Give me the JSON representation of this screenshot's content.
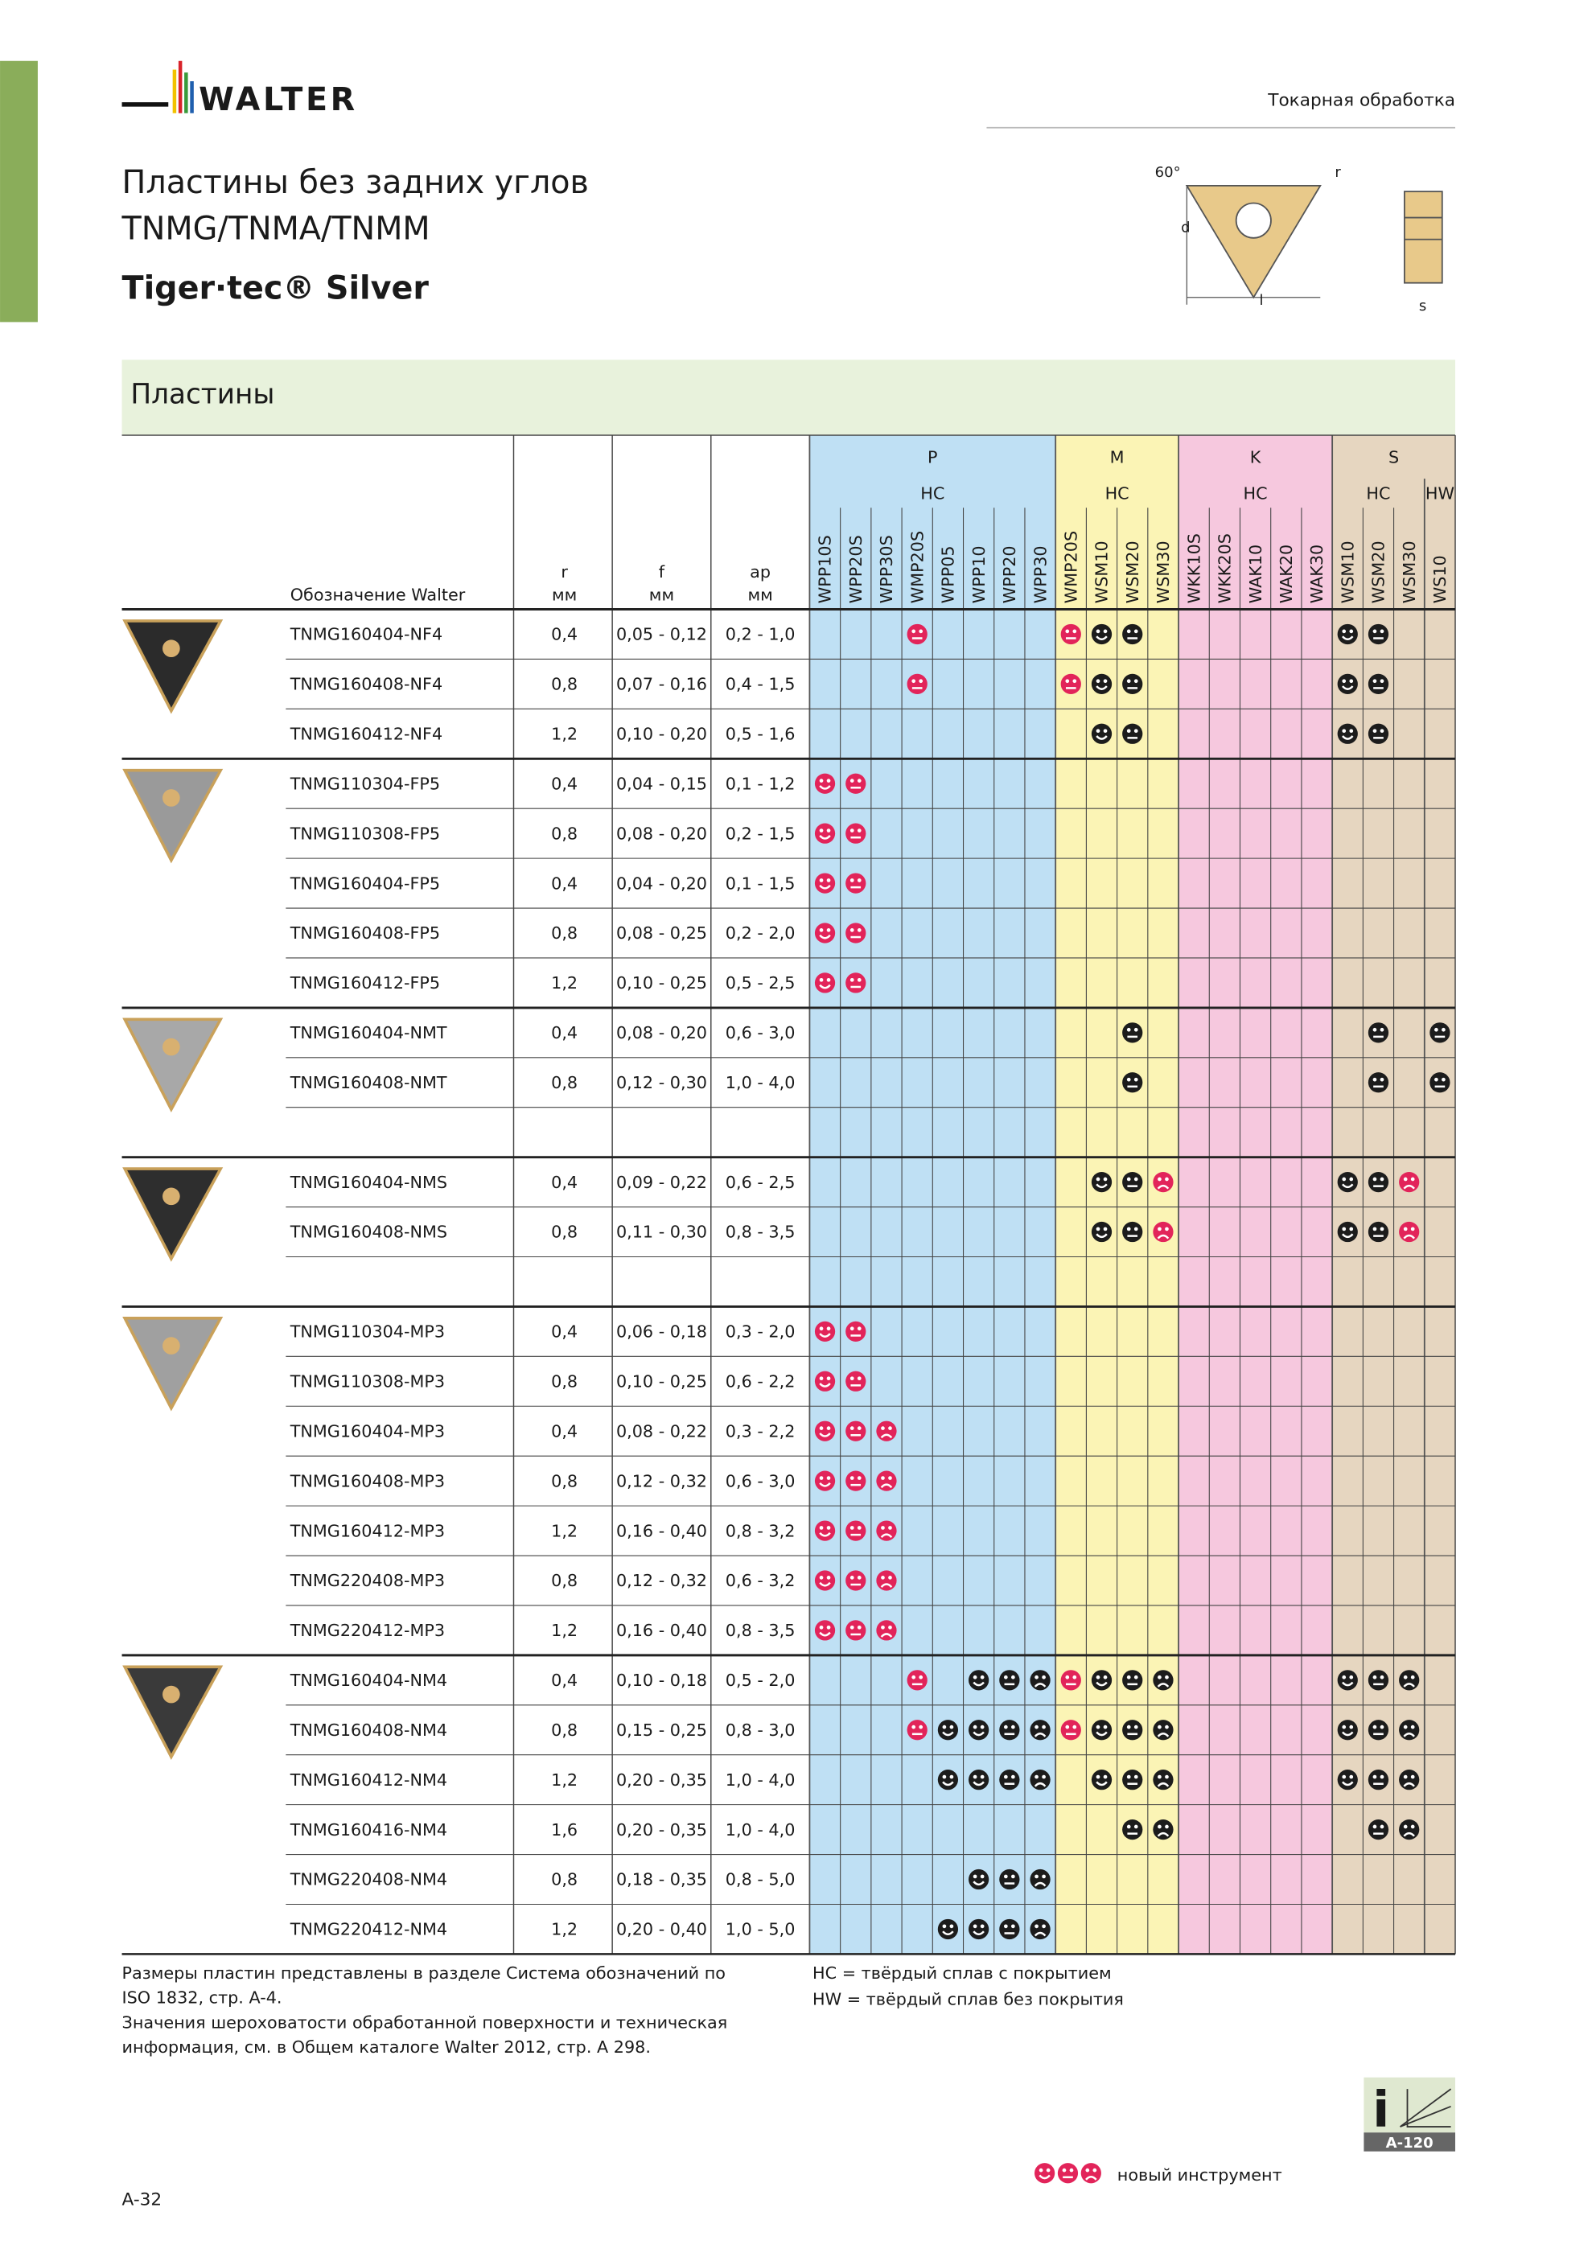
{
  "header": {
    "brand": "WALTER",
    "section": "Токарная обработка"
  },
  "title": {
    "line1": "Пластины без задних углов",
    "line2": "TNMG/TNMA/TNMM",
    "subtitle": "Tiger·tec® Silver"
  },
  "diagram": {
    "angle": "60°",
    "radius": "r",
    "diameter": "d",
    "length": "l",
    "thickness": "s"
  },
  "band": "Пластины",
  "table": {
    "columns": {
      "designation": "Обозначение Walter",
      "r": {
        "label": "r",
        "unit": "мм"
      },
      "f": {
        "label": "f",
        "unit": "мм"
      },
      "ap": {
        "label": "ap",
        "unit": "мм"
      }
    },
    "groups": [
      {
        "name": "P",
        "subgroups": [
          {
            "name": "HC",
            "grades": [
              "WPP10S",
              "WPP20S",
              "WPP30S",
              "WMP20S",
              "WPP05",
              "WPP10",
              "WPP20",
              "WPP30"
            ]
          }
        ]
      },
      {
        "name": "M",
        "subgroups": [
          {
            "name": "HC",
            "grades": [
              "WMP20S",
              "WSM10",
              "WSM20",
              "WSM30"
            ]
          }
        ]
      },
      {
        "name": "K",
        "subgroups": [
          {
            "name": "HC",
            "grades": [
              "WKK10S",
              "WKK20S",
              "WAK10",
              "WAK20",
              "WAK30"
            ]
          }
        ]
      },
      {
        "name": "S",
        "subgroups": [
          {
            "name": "HC",
            "grades": [
              "WSM10",
              "WSM20",
              "WSM30"
            ]
          },
          {
            "name": "HW",
            "grades": [
              "WS10"
            ]
          }
        ]
      }
    ],
    "inserts": [
      {
        "rows": [
          {
            "designation": "TNMG160404-NF4",
            "r": "0,4",
            "f": "0,05 - 0,12",
            "ap": "0,2 - 1,0",
            "ratings": [
              null,
              null,
              null,
              "medium-new",
              null,
              null,
              null,
              null,
              "medium-new",
              "good",
              "medium",
              null,
              null,
              null,
              null,
              null,
              null,
              "good",
              "medium",
              null,
              null
            ]
          },
          {
            "designation": "TNMG160408-NF4",
            "r": "0,8",
            "f": "0,07 - 0,16",
            "ap": "0,4 - 1,5",
            "ratings": [
              null,
              null,
              null,
              "medium-new",
              null,
              null,
              null,
              null,
              "medium-new",
              "good",
              "medium",
              null,
              null,
              null,
              null,
              null,
              null,
              "good",
              "medium",
              null,
              null
            ]
          },
          {
            "designation": "TNMG160412-NF4",
            "r": "1,2",
            "f": "0,10 - 0,20",
            "ap": "0,5 - 1,6",
            "ratings": [
              null,
              null,
              null,
              null,
              null,
              null,
              null,
              null,
              null,
              "good",
              "medium",
              null,
              null,
              null,
              null,
              null,
              null,
              "good",
              "medium",
              null,
              null
            ]
          }
        ]
      },
      {
        "rows": [
          {
            "designation": "TNMG110304-FP5",
            "r": "0,4",
            "f": "0,04 - 0,15",
            "ap": "0,1 - 1,2",
            "ratings": [
              "good-new",
              "medium-new",
              null,
              null,
              null,
              null,
              null,
              null,
              null,
              null,
              null,
              null,
              null,
              null,
              null,
              null,
              null,
              null,
              null,
              null,
              null
            ]
          },
          {
            "designation": "TNMG110308-FP5",
            "r": "0,8",
            "f": "0,08 - 0,20",
            "ap": "0,2 - 1,5",
            "ratings": [
              "good-new",
              "medium-new",
              null,
              null,
              null,
              null,
              null,
              null,
              null,
              null,
              null,
              null,
              null,
              null,
              null,
              null,
              null,
              null,
              null,
              null,
              null
            ]
          },
          {
            "designation": "TNMG160404-FP5",
            "r": "0,4",
            "f": "0,04 - 0,20",
            "ap": "0,1 - 1,5",
            "ratings": [
              "good-new",
              "medium-new",
              null,
              null,
              null,
              null,
              null,
              null,
              null,
              null,
              null,
              null,
              null,
              null,
              null,
              null,
              null,
              null,
              null,
              null,
              null
            ]
          },
          {
            "designation": "TNMG160408-FP5",
            "r": "0,8",
            "f": "0,08 - 0,25",
            "ap": "0,2 - 2,0",
            "ratings": [
              "good-new",
              "medium-new",
              null,
              null,
              null,
              null,
              null,
              null,
              null,
              null,
              null,
              null,
              null,
              null,
              null,
              null,
              null,
              null,
              null,
              null,
              null
            ]
          },
          {
            "designation": "TNMG160412-FP5",
            "r": "1,2",
            "f": "0,10 - 0,25",
            "ap": "0,5 - 2,5",
            "ratings": [
              "good-new",
              "medium-new",
              null,
              null,
              null,
              null,
              null,
              null,
              null,
              null,
              null,
              null,
              null,
              null,
              null,
              null,
              null,
              null,
              null,
              null,
              null
            ]
          }
        ]
      },
      {
        "rows": [
          {
            "designation": "TNMG160404-NMT",
            "r": "0,4",
            "f": "0,08 - 0,20",
            "ap": "0,6 - 3,0",
            "ratings": [
              null,
              null,
              null,
              null,
              null,
              null,
              null,
              null,
              null,
              null,
              "medium",
              null,
              null,
              null,
              null,
              null,
              null,
              null,
              "medium",
              null,
              "medium"
            ]
          },
          {
            "designation": "TNMG160408-NMT",
            "r": "0,8",
            "f": "0,12 - 0,30",
            "ap": "1,0 - 4,0",
            "ratings": [
              null,
              null,
              null,
              null,
              null,
              null,
              null,
              null,
              null,
              null,
              "medium",
              null,
              null,
              null,
              null,
              null,
              null,
              null,
              "medium",
              null,
              "medium"
            ]
          },
          null
        ]
      },
      {
        "rows": [
          {
            "designation": "TNMG160404-NMS",
            "r": "0,4",
            "f": "0,09 - 0,22",
            "ap": "0,6 - 2,5",
            "ratings": [
              null,
              null,
              null,
              null,
              null,
              null,
              null,
              null,
              null,
              "good",
              "medium",
              "poor-new",
              null,
              null,
              null,
              null,
              null,
              "good",
              "medium",
              "poor-new",
              null
            ]
          },
          {
            "designation": "TNMG160408-NMS",
            "r": "0,8",
            "f": "0,11 - 0,30",
            "ap": "0,8 - 3,5",
            "ratings": [
              null,
              null,
              null,
              null,
              null,
              null,
              null,
              null,
              null,
              "good",
              "medium",
              "poor-new",
              null,
              null,
              null,
              null,
              null,
              "good",
              "medium",
              "poor-new",
              null
            ]
          },
          null
        ]
      },
      {
        "rows": [
          {
            "designation": "TNMG110304-MP3",
            "r": "0,4",
            "f": "0,06 - 0,18",
            "ap": "0,3 - 2,0",
            "ratings": [
              "good-new",
              "medium-new",
              null,
              null,
              null,
              null,
              null,
              null,
              null,
              null,
              null,
              null,
              null,
              null,
              null,
              null,
              null,
              null,
              null,
              null,
              null
            ]
          },
          {
            "designation": "TNMG110308-MP3",
            "r": "0,8",
            "f": "0,10 - 0,25",
            "ap": "0,6 - 2,2",
            "ratings": [
              "good-new",
              "medium-new",
              null,
              null,
              null,
              null,
              null,
              null,
              null,
              null,
              null,
              null,
              null,
              null,
              null,
              null,
              null,
              null,
              null,
              null,
              null
            ]
          },
          {
            "designation": "TNMG160404-MP3",
            "r": "0,4",
            "f": "0,08 - 0,22",
            "ap": "0,3 - 2,2",
            "ratings": [
              "good-new",
              "medium-new",
              "poor-new",
              null,
              null,
              null,
              null,
              null,
              null,
              null,
              null,
              null,
              null,
              null,
              null,
              null,
              null,
              null,
              null,
              null,
              null
            ]
          },
          {
            "designation": "TNMG160408-MP3",
            "r": "0,8",
            "f": "0,12 - 0,32",
            "ap": "0,6 - 3,0",
            "ratings": [
              "good-new",
              "medium-new",
              "poor-new",
              null,
              null,
              null,
              null,
              null,
              null,
              null,
              null,
              null,
              null,
              null,
              null,
              null,
              null,
              null,
              null,
              null,
              null
            ]
          },
          {
            "designation": "TNMG160412-MP3",
            "r": "1,2",
            "f": "0,16 - 0,40",
            "ap": "0,8 - 3,2",
            "ratings": [
              "good-new",
              "medium-new",
              "poor-new",
              null,
              null,
              null,
              null,
              null,
              null,
              null,
              null,
              null,
              null,
              null,
              null,
              null,
              null,
              null,
              null,
              null,
              null
            ]
          },
          {
            "designation": "TNMG220408-MP3",
            "r": "0,8",
            "f": "0,12 - 0,32",
            "ap": "0,6 - 3,2",
            "ratings": [
              "good-new",
              "medium-new",
              "poor-new",
              null,
              null,
              null,
              null,
              null,
              null,
              null,
              null,
              null,
              null,
              null,
              null,
              null,
              null,
              null,
              null,
              null,
              null
            ]
          },
          {
            "designation": "TNMG220412-MP3",
            "r": "1,2",
            "f": "0,16 - 0,40",
            "ap": "0,8 - 3,5",
            "ratings": [
              "good-new",
              "medium-new",
              "poor-new",
              null,
              null,
              null,
              null,
              null,
              null,
              null,
              null,
              null,
              null,
              null,
              null,
              null,
              null,
              null,
              null,
              null,
              null
            ]
          }
        ]
      },
      {
        "rows": [
          {
            "designation": "TNMG160404-NM4",
            "r": "0,4",
            "f": "0,10 - 0,18",
            "ap": "0,5 - 2,0",
            "ratings": [
              null,
              null,
              null,
              "medium-new",
              null,
              "good",
              "medium",
              "poor",
              "medium-new",
              "good",
              "medium",
              "poor",
              null,
              null,
              null,
              null,
              null,
              "good",
              "medium",
              "poor",
              null
            ]
          },
          {
            "designation": "TNMG160408-NM4",
            "r": "0,8",
            "f": "0,15 - 0,25",
            "ap": "0,8 - 3,0",
            "ratings": [
              null,
              null,
              null,
              "medium-new",
              "good",
              "good",
              "medium",
              "poor",
              "medium-new",
              "good",
              "medium",
              "poor",
              null,
              null,
              null,
              null,
              null,
              "good",
              "medium",
              "poor",
              null
            ]
          },
          {
            "designation": "TNMG160412-NM4",
            "r": "1,2",
            "f": "0,20 - 0,35",
            "ap": "1,0 - 4,0",
            "ratings": [
              null,
              null,
              null,
              null,
              "good",
              "good",
              "medium",
              "poor",
              null,
              "good",
              "medium",
              "poor",
              null,
              null,
              null,
              null,
              null,
              "good",
              "medium",
              "poor",
              null
            ]
          },
          {
            "designation": "TNMG160416-NM4",
            "r": "1,6",
            "f": "0,20 - 0,35",
            "ap": "1,0 - 4,0",
            "ratings": [
              null,
              null,
              null,
              null,
              null,
              null,
              null,
              null,
              null,
              null,
              "medium",
              "poor",
              null,
              null,
              null,
              null,
              null,
              null,
              "medium",
              "poor",
              null
            ]
          },
          {
            "designation": "TNMG220408-NM4",
            "r": "0,8",
            "f": "0,18 - 0,35",
            "ap": "0,8 - 5,0",
            "ratings": [
              null,
              null,
              null,
              null,
              null,
              "good",
              "medium",
              "poor",
              null,
              null,
              null,
              null,
              null,
              null,
              null,
              null,
              null,
              null,
              null,
              null,
              null
            ]
          },
          {
            "designation": "TNMG220412-NM4",
            "r": "1,2",
            "f": "0,20 - 0,40",
            "ap": "1,0 - 5,0",
            "ratings": [
              null,
              null,
              null,
              null,
              "good",
              "good",
              "medium",
              "poor",
              null,
              null,
              null,
              null,
              null,
              null,
              null,
              null,
              null,
              null,
              null,
              null,
              null
            ]
          }
        ]
      }
    ]
  },
  "notes": [
    "Размеры пластин представлены в разделе Система обозначений по",
    "ISO 1832, стр. A-4.",
    "Значения шероховатости обработанной поверхности и техническая",
    "информация, см. в Общем каталоге Walter 2012, стр. A 298."
  ],
  "abbreviations": [
    "HC = твёрдый сплав с покрытием",
    "HW = твёрдый сплав без покрытия"
  ],
  "info_ref": "A-120",
  "legend": "новый инструмент",
  "page_number": "A-32"
}
